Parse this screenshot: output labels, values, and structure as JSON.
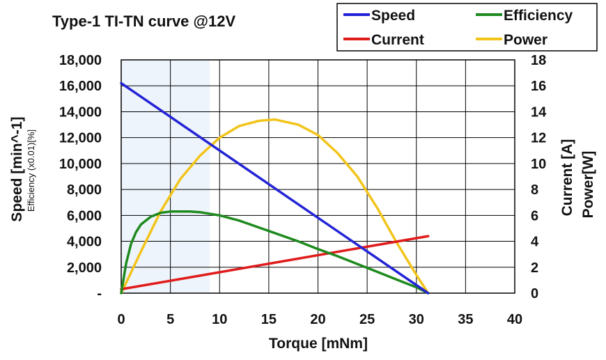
{
  "chart_data": {
    "type": "line",
    "title": "Type-1 TI-TN curve @12V",
    "xlabel": "Torque [mNm]",
    "ylabel_left": "Speed [min^-1]",
    "ylabel_left_sub": "Efficiency (x0.01)[%]",
    "ylabel_right_1": "Current [A]",
    "ylabel_right_2": "Power[W]",
    "xlim": [
      0,
      40
    ],
    "ylim_left": [
      0,
      18000
    ],
    "ylim_right": [
      0,
      18
    ],
    "x_ticks": [
      "0",
      "5",
      "10",
      "15",
      "20",
      "25",
      "30",
      "35",
      "40"
    ],
    "y_left_ticks": [
      "-",
      "2,000",
      "4,000",
      "6,000",
      "8,000",
      "10,000",
      "12,000",
      "14,000",
      "16,000",
      "18,000"
    ],
    "y_right_ticks": [
      "0",
      "2",
      "4",
      "6",
      "8",
      "10",
      "12",
      "14",
      "16",
      "18"
    ],
    "grid": true,
    "legend": "top-right",
    "shaded_region": {
      "x": [
        0,
        9
      ],
      "color": "#eef4fb"
    },
    "series": [
      {
        "name": "Speed",
        "axis": "left",
        "color": "#2323d6",
        "x": [
          0,
          31.2
        ],
        "y": [
          16200,
          0
        ]
      },
      {
        "name": "Efficiency",
        "axis": "left",
        "color": "#1e8a1e",
        "x": [
          0,
          0.5,
          1,
          1.5,
          2,
          3,
          4,
          5,
          6,
          7,
          8,
          10,
          12,
          15,
          18,
          20,
          22,
          24,
          26,
          28,
          30,
          31.2
        ],
        "y": [
          0,
          2300,
          3800,
          4700,
          5300,
          5900,
          6200,
          6300,
          6300,
          6300,
          6250,
          6000,
          5600,
          4800,
          4000,
          3400,
          2850,
          2250,
          1650,
          1050,
          450,
          0
        ]
      },
      {
        "name": "Current",
        "axis": "right",
        "color": "#e01b1b",
        "x": [
          0,
          31.2
        ],
        "y": [
          0.3,
          4.4
        ]
      },
      {
        "name": "Power",
        "axis": "right",
        "color": "#f2c41a",
        "x": [
          0,
          2,
          4,
          6,
          8,
          10,
          12,
          14,
          15.6,
          18,
          20,
          22,
          24,
          26,
          28,
          30,
          31.2
        ],
        "y": [
          0,
          3.2,
          6.3,
          8.8,
          10.6,
          12.0,
          12.9,
          13.3,
          13.4,
          13.0,
          12.2,
          10.8,
          9.0,
          6.6,
          3.9,
          1.4,
          0
        ]
      }
    ]
  }
}
